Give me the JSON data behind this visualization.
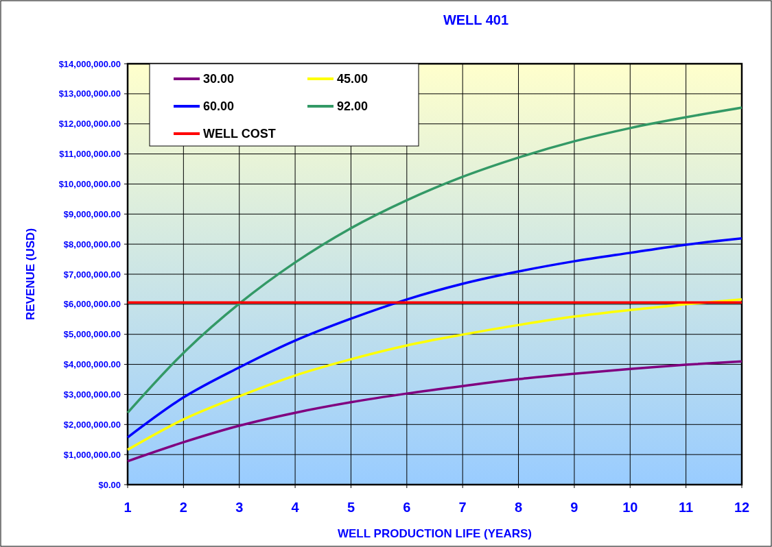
{
  "chart_data": {
    "type": "line",
    "title": "WELL 401",
    "xlabel": "WELL PRODUCTION LIFE (YEARS)",
    "ylabel": "REVENUE (USD)",
    "x": [
      1,
      2,
      3,
      4,
      5,
      6,
      7,
      8,
      9,
      10,
      11,
      12
    ],
    "xlim": [
      1,
      12
    ],
    "xticks": [
      1,
      2,
      3,
      4,
      5,
      6,
      7,
      8,
      9,
      10,
      11,
      12
    ],
    "ylim": [
      0,
      14000000
    ],
    "yticks": [
      {
        "value": 0,
        "label": "$0.00"
      },
      {
        "value": 1000000,
        "label": "$1,000,000.00"
      },
      {
        "value": 2000000,
        "label": "$2,000,000.00"
      },
      {
        "value": 3000000,
        "label": "$3,000,000.00"
      },
      {
        "value": 4000000,
        "label": "$4,000,000.00"
      },
      {
        "value": 5000000,
        "label": "$5,000,000.00"
      },
      {
        "value": 6000000,
        "label": "$6,000,000.00"
      },
      {
        "value": 7000000,
        "label": "$7,000,000.00"
      },
      {
        "value": 8000000,
        "label": "$8,000,000.00"
      },
      {
        "value": 9000000,
        "label": "$9,000,000.00"
      },
      {
        "value": 10000000,
        "label": "$10,000,000.00"
      },
      {
        "value": 11000000,
        "label": "$11,000,000.00"
      },
      {
        "value": 12000000,
        "label": "$12,000,000.00"
      },
      {
        "value": 13000000,
        "label": "$13,000,000.00"
      },
      {
        "value": 14000000,
        "label": "$14,000,000.00"
      }
    ],
    "grid": true,
    "legend": "top left",
    "marker": "none",
    "line_style": "solid",
    "series": [
      {
        "name": "30.00",
        "color": "#800080",
        "values": [
          780000,
          1410000,
          1960000,
          2390000,
          2740000,
          3030000,
          3280000,
          3510000,
          3690000,
          3850000,
          3990000,
          4100000
        ]
      },
      {
        "name": "45.00",
        "color": "#ffff00",
        "values": [
          1160000,
          2170000,
          2940000,
          3630000,
          4170000,
          4630000,
          4990000,
          5310000,
          5590000,
          5810000,
          6000000,
          6160000
        ]
      },
      {
        "name": "60.00",
        "color": "#0000ff",
        "values": [
          1570000,
          2900000,
          3900000,
          4790000,
          5520000,
          6160000,
          6680000,
          7090000,
          7430000,
          7710000,
          7980000,
          8190000
        ]
      },
      {
        "name": "92.00",
        "color": "#339966",
        "values": [
          2390000,
          4380000,
          6020000,
          7390000,
          8530000,
          9460000,
          10240000,
          10880000,
          11420000,
          11860000,
          12220000,
          12540000
        ]
      },
      {
        "name": "WELL COST",
        "color": "#ff0000",
        "values": [
          6060000,
          6060000,
          6060000,
          6060000,
          6060000,
          6060000,
          6060000,
          6060000,
          6060000,
          6060000,
          6060000,
          6060000
        ]
      }
    ]
  }
}
